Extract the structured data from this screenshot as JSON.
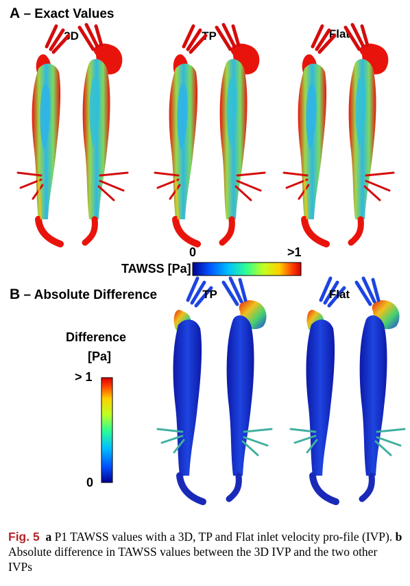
{
  "panel_a": {
    "letter": "A",
    "title": "– Exact Values",
    "columns": [
      "3D",
      "TP",
      "Flat"
    ],
    "colorbar": {
      "label": "TAWSS [Pa]",
      "min_label": "0",
      "max_label": ">1"
    }
  },
  "panel_b": {
    "letter": "B",
    "title": "– Absolute Difference",
    "columns": [
      "TP",
      "Flat"
    ],
    "colorbar": {
      "label_line1": "Difference",
      "label_line2": "[Pa]",
      "max_label": "> 1",
      "min_label": "0"
    }
  },
  "caption": {
    "fig_label": "Fig. 5",
    "a_letter": "a",
    "a_text": "P1 TAWSS values with a 3D, TP and Flat inlet velocity pro-file (IVP).",
    "b_letter": "b",
    "b_text": "Absolute difference in TAWSS values between the 3D IVP and the two other IVPs"
  },
  "colors": {
    "jet": [
      "#00008f",
      "#0050ff",
      "#00c0ff",
      "#30ff90",
      "#c0ff20",
      "#ffd000",
      "#ff4000",
      "#d40000"
    ],
    "high": "#e8140c",
    "low": "#1530c8"
  }
}
